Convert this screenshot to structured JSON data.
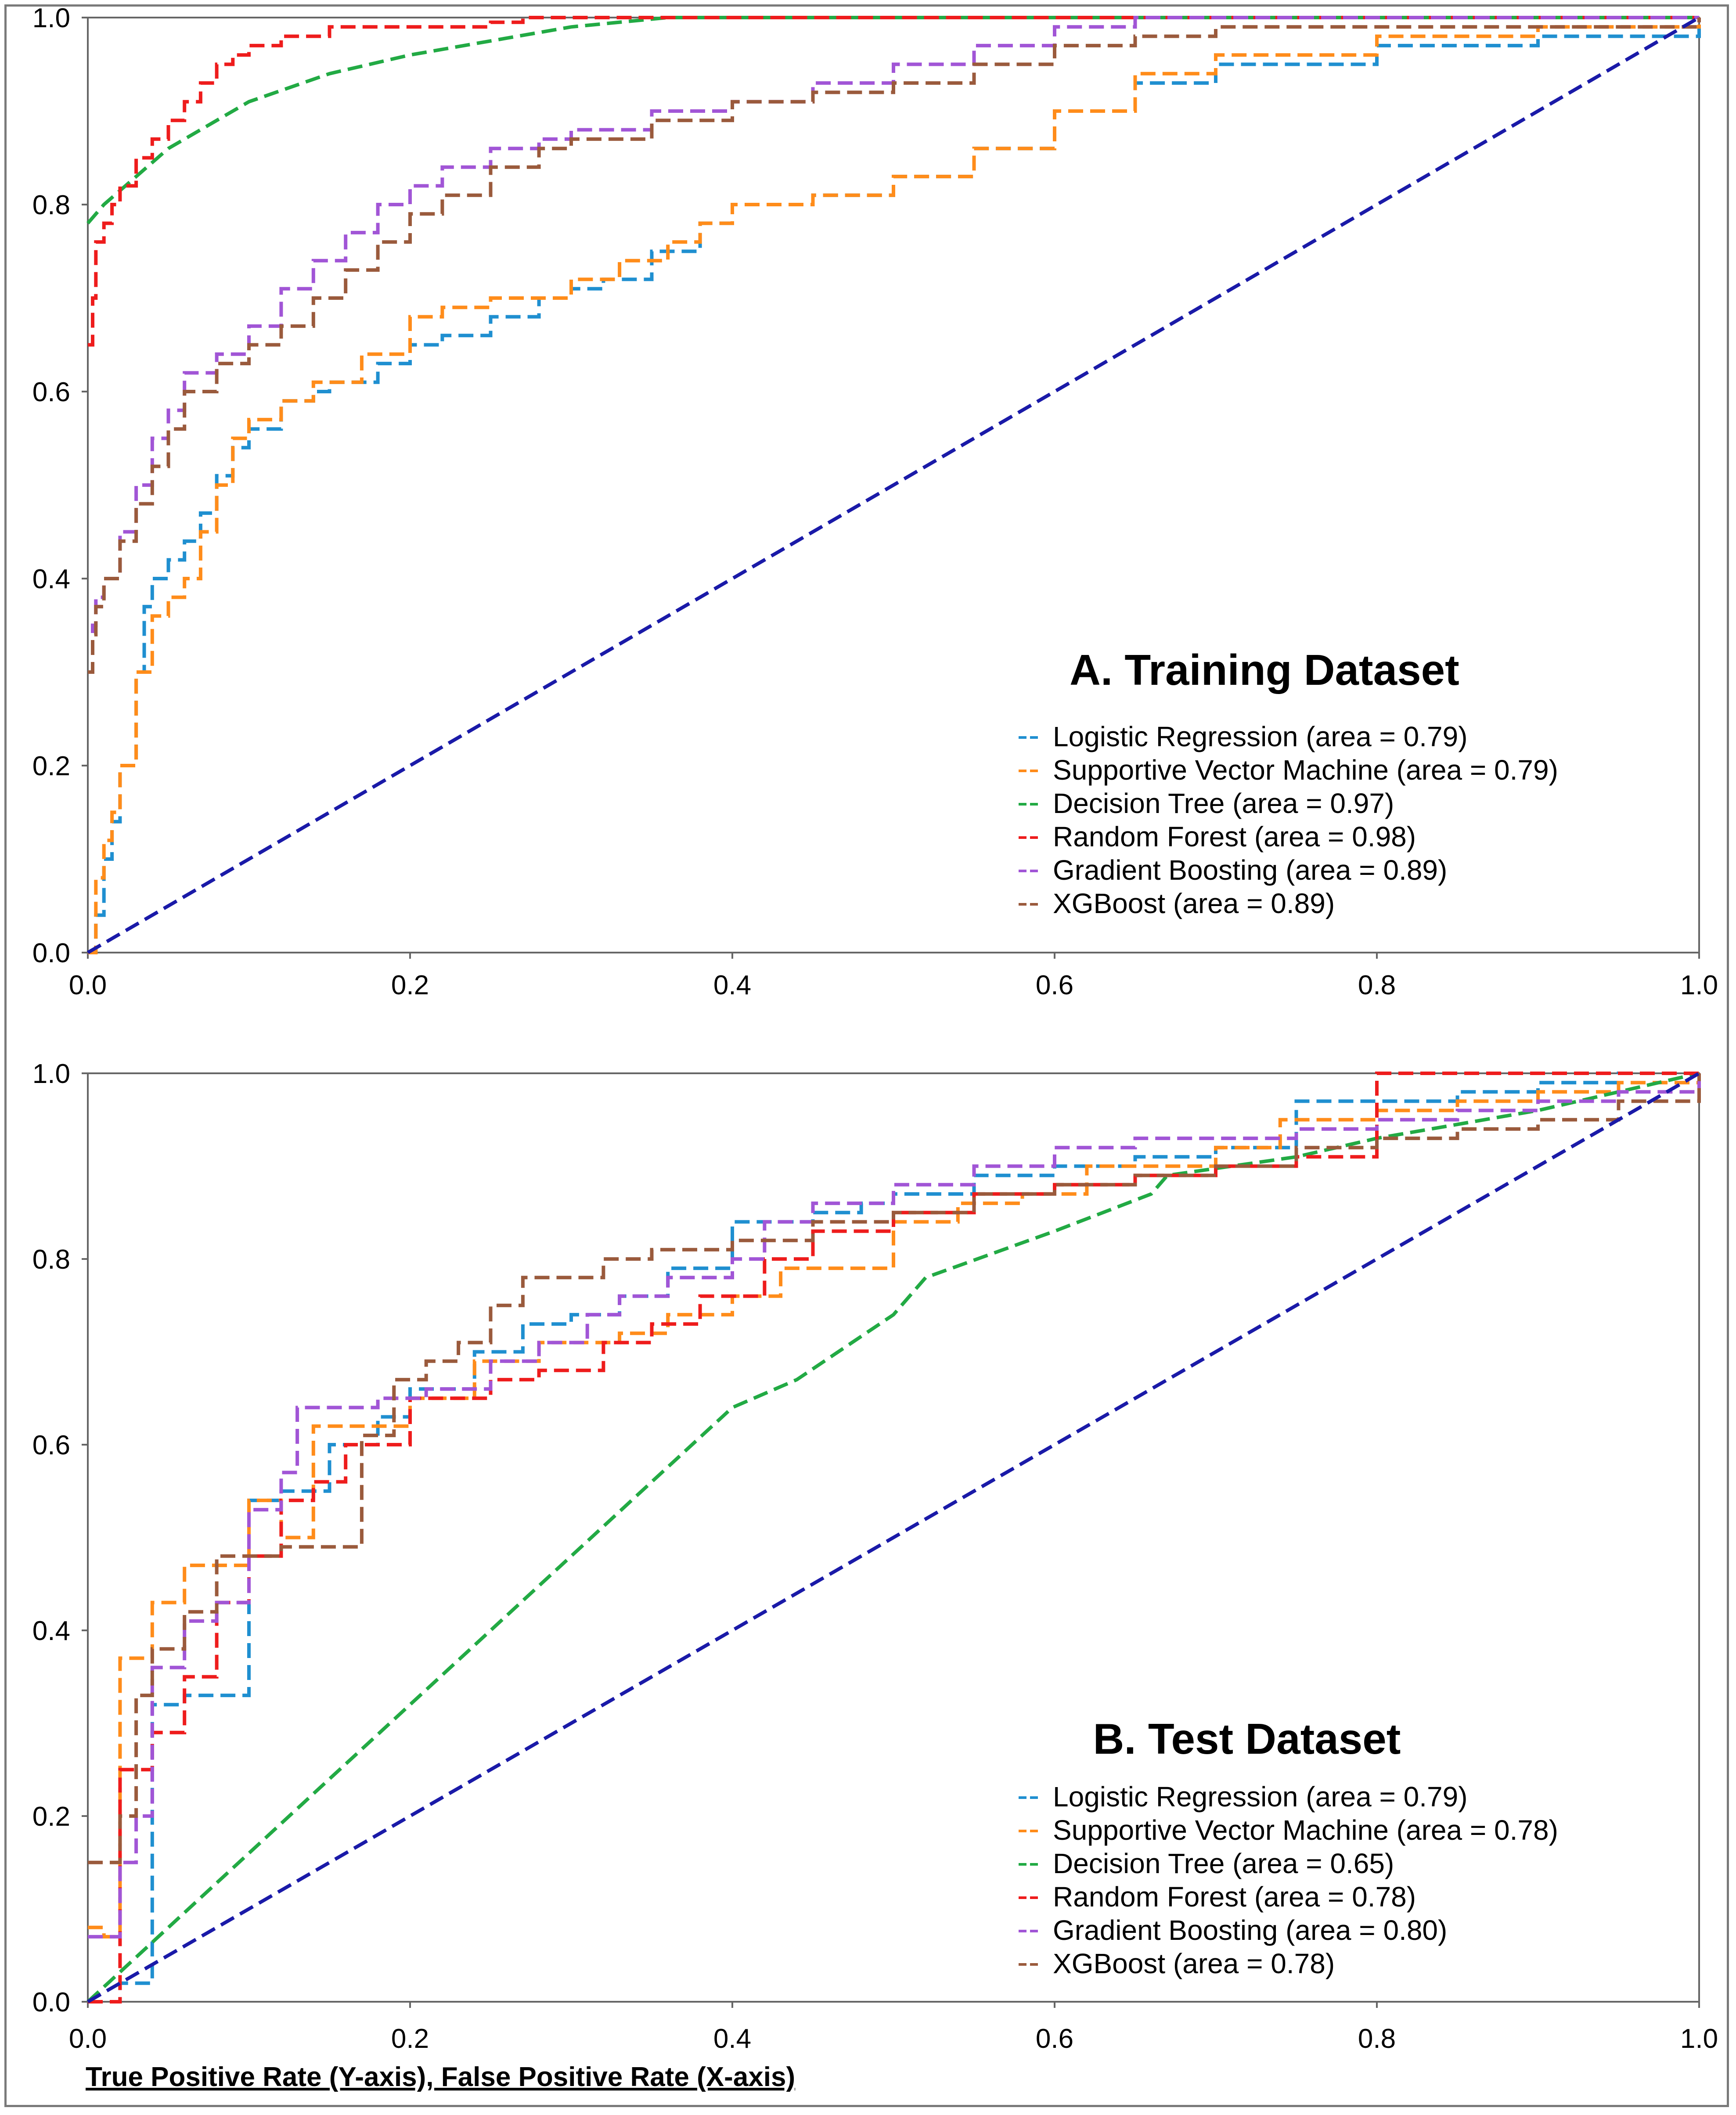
{
  "chart_data": [
    {
      "type": "line",
      "title": "A. Training Dataset",
      "xlim": [
        0,
        1
      ],
      "ylim": [
        0,
        1
      ],
      "x_ticks": [
        "0.0",
        "0.2",
        "0.4",
        "0.6",
        "0.8",
        "1.0"
      ],
      "y_ticks": [
        "0.0",
        "0.2",
        "0.4",
        "0.6",
        "0.8",
        "1.0"
      ],
      "grid": false,
      "legend_position": "bottom-right",
      "series": [
        {
          "name": "Logistic Regression (area = 0.79)",
          "color": "#1f8fd0",
          "step": true,
          "x": [
            0,
            0.005,
            0.01,
            0.015,
            0.02,
            0.03,
            0.035,
            0.04,
            0.05,
            0.06,
            0.07,
            0.08,
            0.09,
            0.1,
            0.12,
            0.14,
            0.15,
            0.18,
            0.2,
            0.22,
            0.25,
            0.28,
            0.3,
            0.32,
            0.35,
            0.38,
            0.4,
            0.45,
            0.5,
            0.55,
            0.6,
            0.65,
            0.7,
            0.8,
            0.9,
            1.0
          ],
          "y": [
            0,
            0.04,
            0.1,
            0.14,
            0.2,
            0.3,
            0.37,
            0.4,
            0.42,
            0.44,
            0.47,
            0.51,
            0.54,
            0.56,
            0.59,
            0.6,
            0.61,
            0.63,
            0.65,
            0.66,
            0.68,
            0.7,
            0.71,
            0.72,
            0.75,
            0.78,
            0.8,
            0.81,
            0.83,
            0.86,
            0.9,
            0.93,
            0.95,
            0.97,
            0.98,
            1.0
          ]
        },
        {
          "name": "Supportive Vector Machine (area = 0.79)",
          "color": "#ff8c1a",
          "step": true,
          "x": [
            0,
            0.005,
            0.01,
            0.015,
            0.02,
            0.03,
            0.04,
            0.05,
            0.06,
            0.07,
            0.08,
            0.09,
            0.1,
            0.12,
            0.14,
            0.17,
            0.2,
            0.22,
            0.25,
            0.3,
            0.33,
            0.36,
            0.38,
            0.4,
            0.45,
            0.5,
            0.55,
            0.6,
            0.65,
            0.7,
            0.8,
            0.9,
            1.0
          ],
          "y": [
            0,
            0.08,
            0.12,
            0.15,
            0.2,
            0.3,
            0.36,
            0.38,
            0.4,
            0.45,
            0.5,
            0.55,
            0.57,
            0.59,
            0.61,
            0.64,
            0.68,
            0.69,
            0.7,
            0.72,
            0.74,
            0.76,
            0.78,
            0.8,
            0.81,
            0.83,
            0.86,
            0.9,
            0.94,
            0.96,
            0.98,
            0.99,
            1.0
          ]
        },
        {
          "name": "Decision Tree (area = 0.97)",
          "color": "#22aa44",
          "step": false,
          "x": [
            0,
            0.01,
            0.05,
            0.1,
            0.15,
            0.2,
            0.3,
            0.36,
            0.4,
            1.0
          ],
          "y": [
            0.78,
            0.8,
            0.86,
            0.91,
            0.94,
            0.96,
            0.99,
            1.0,
            1.0,
            1.0
          ]
        },
        {
          "name": "Random Forest (area = 0.98)",
          "color": "#ee1c1c",
          "step": true,
          "x": [
            0,
            0.003,
            0.005,
            0.01,
            0.015,
            0.02,
            0.03,
            0.04,
            0.05,
            0.06,
            0.07,
            0.08,
            0.09,
            0.1,
            0.12,
            0.15,
            0.2,
            0.25,
            0.27,
            0.3,
            1.0
          ],
          "y": [
            0.65,
            0.7,
            0.76,
            0.78,
            0.8,
            0.82,
            0.85,
            0.87,
            0.89,
            0.91,
            0.93,
            0.95,
            0.96,
            0.97,
            0.98,
            0.99,
            0.99,
            0.995,
            1.0,
            1.0,
            1.0
          ]
        },
        {
          "name": "Gradient Boosting (area = 0.89)",
          "color": "#a155d6",
          "step": true,
          "x": [
            0,
            0.003,
            0.005,
            0.01,
            0.02,
            0.03,
            0.04,
            0.05,
            0.06,
            0.08,
            0.1,
            0.12,
            0.14,
            0.16,
            0.18,
            0.2,
            0.22,
            0.25,
            0.28,
            0.3,
            0.35,
            0.4,
            0.45,
            0.5,
            0.55,
            0.6,
            0.65,
            0.7,
            1.0
          ],
          "y": [
            0.3,
            0.35,
            0.38,
            0.4,
            0.45,
            0.5,
            0.55,
            0.58,
            0.62,
            0.64,
            0.67,
            0.71,
            0.74,
            0.77,
            0.8,
            0.82,
            0.84,
            0.86,
            0.87,
            0.88,
            0.9,
            0.91,
            0.93,
            0.95,
            0.97,
            0.99,
            1.0,
            1.0,
            1.0
          ]
        },
        {
          "name": "XGBoost (area = 0.89)",
          "color": "#9a5a3c",
          "step": true,
          "x": [
            0,
            0.003,
            0.005,
            0.01,
            0.02,
            0.03,
            0.04,
            0.05,
            0.06,
            0.08,
            0.1,
            0.12,
            0.14,
            0.16,
            0.18,
            0.2,
            0.22,
            0.25,
            0.28,
            0.3,
            0.35,
            0.4,
            0.45,
            0.5,
            0.55,
            0.6,
            0.65,
            0.7,
            1.0
          ],
          "y": [
            0.3,
            0.34,
            0.37,
            0.4,
            0.44,
            0.48,
            0.52,
            0.56,
            0.6,
            0.63,
            0.65,
            0.67,
            0.7,
            0.73,
            0.76,
            0.79,
            0.81,
            0.84,
            0.86,
            0.87,
            0.89,
            0.91,
            0.92,
            0.93,
            0.95,
            0.97,
            0.98,
            0.99,
            1.0
          ]
        },
        {
          "name": "",
          "color": "#1a1aa8",
          "step": false,
          "x": [
            0,
            1
          ],
          "y": [
            0,
            1
          ]
        }
      ]
    },
    {
      "type": "line",
      "title": "B. Test Dataset",
      "xlim": [
        0,
        1
      ],
      "ylim": [
        0,
        1
      ],
      "x_ticks": [
        "0.0",
        "0.2",
        "0.4",
        "0.6",
        "0.8",
        "1.0"
      ],
      "y_ticks": [
        "0.0",
        "0.2",
        "0.4",
        "0.6",
        "0.8",
        "1.0"
      ],
      "grid": false,
      "legend_position": "bottom-right",
      "xlabel": "True Positive Rate (Y-axis), False Positive Rate (X-axis)",
      "series": [
        {
          "name": "Logistic Regression (area = 0.79)",
          "color": "#1f8fd0",
          "step": true,
          "x": [
            0,
            0.02,
            0.04,
            0.06,
            0.08,
            0.1,
            0.12,
            0.15,
            0.18,
            0.2,
            0.24,
            0.27,
            0.3,
            0.33,
            0.36,
            0.4,
            0.42,
            0.45,
            0.48,
            0.5,
            0.55,
            0.6,
            0.65,
            0.7,
            0.75,
            0.8,
            0.85,
            0.9,
            0.95,
            1.0
          ],
          "y": [
            0,
            0.02,
            0.32,
            0.33,
            0.33,
            0.54,
            0.55,
            0.6,
            0.63,
            0.66,
            0.7,
            0.73,
            0.74,
            0.76,
            0.79,
            0.84,
            0.84,
            0.85,
            0.86,
            0.87,
            0.89,
            0.9,
            0.91,
            0.92,
            0.97,
            0.97,
            0.98,
            0.99,
            1.0,
            1.0
          ]
        },
        {
          "name": "Supportive Vector Machine (area = 0.78)",
          "color": "#ff8c1a",
          "step": true,
          "x": [
            0,
            0.01,
            0.02,
            0.04,
            0.06,
            0.1,
            0.12,
            0.14,
            0.16,
            0.2,
            0.24,
            0.28,
            0.33,
            0.36,
            0.4,
            0.43,
            0.46,
            0.5,
            0.54,
            0.58,
            0.62,
            0.66,
            0.7,
            0.74,
            0.8,
            0.85,
            0.9,
            0.95,
            1.0
          ],
          "y": [
            0.08,
            0.07,
            0.37,
            0.43,
            0.47,
            0.54,
            0.5,
            0.62,
            0.62,
            0.65,
            0.69,
            0.71,
            0.72,
            0.74,
            0.76,
            0.79,
            0.79,
            0.84,
            0.86,
            0.87,
            0.9,
            0.9,
            0.92,
            0.95,
            0.96,
            0.97,
            0.98,
            0.99,
            1.0
          ]
        },
        {
          "name": "Decision Tree (area = 0.65)",
          "color": "#22aa44",
          "step": false,
          "x": [
            0,
            0.1,
            0.2,
            0.3,
            0.4,
            0.44,
            0.5,
            0.52,
            0.6,
            0.66,
            0.67,
            0.75,
            0.8,
            0.9,
            1.0
          ],
          "y": [
            0,
            0.16,
            0.32,
            0.48,
            0.64,
            0.67,
            0.74,
            0.78,
            0.83,
            0.87,
            0.89,
            0.91,
            0.93,
            0.96,
            1.0
          ]
        },
        {
          "name": "Random Forest (area = 0.78)",
          "color": "#ee1c1c",
          "step": true,
          "x": [
            0,
            0.02,
            0.03,
            0.04,
            0.06,
            0.08,
            0.1,
            0.12,
            0.14,
            0.16,
            0.2,
            0.22,
            0.25,
            0.28,
            0.32,
            0.35,
            0.38,
            0.42,
            0.45,
            0.5,
            0.55,
            0.6,
            0.65,
            0.7,
            0.75,
            0.8,
            0.85,
            0.9,
            1.0
          ],
          "y": [
            0,
            0.25,
            0.25,
            0.29,
            0.35,
            0.43,
            0.48,
            0.54,
            0.56,
            0.6,
            0.65,
            0.65,
            0.67,
            0.68,
            0.71,
            0.73,
            0.76,
            0.8,
            0.83,
            0.85,
            0.87,
            0.88,
            0.89,
            0.9,
            0.91,
            1.0,
            1.0,
            1.0,
            1.0
          ]
        },
        {
          "name": "Gradient Boosting (area = 0.80)",
          "color": "#a155d6",
          "step": true,
          "x": [
            0,
            0.02,
            0.03,
            0.04,
            0.06,
            0.08,
            0.1,
            0.12,
            0.13,
            0.15,
            0.18,
            0.21,
            0.25,
            0.28,
            0.31,
            0.33,
            0.36,
            0.4,
            0.42,
            0.45,
            0.5,
            0.55,
            0.6,
            0.65,
            0.7,
            0.75,
            0.8,
            0.85,
            0.9,
            0.95,
            1.0
          ],
          "y": [
            0.07,
            0.15,
            0.2,
            0.36,
            0.41,
            0.43,
            0.53,
            0.57,
            0.64,
            0.64,
            0.65,
            0.66,
            0.69,
            0.71,
            0.74,
            0.76,
            0.78,
            0.8,
            0.84,
            0.86,
            0.88,
            0.9,
            0.92,
            0.93,
            0.93,
            0.94,
            0.95,
            0.96,
            0.97,
            0.98,
            1.0
          ]
        },
        {
          "name": "XGBoost (area = 0.78)",
          "color": "#9a5a3c",
          "step": true,
          "x": [
            0,
            0.02,
            0.03,
            0.04,
            0.06,
            0.08,
            0.1,
            0.12,
            0.14,
            0.17,
            0.19,
            0.21,
            0.23,
            0.25,
            0.27,
            0.3,
            0.32,
            0.35,
            0.4,
            0.45,
            0.5,
            0.55,
            0.6,
            0.65,
            0.7,
            0.75,
            0.8,
            0.85,
            0.9,
            0.95,
            1.0
          ],
          "y": [
            0.15,
            0.2,
            0.33,
            0.38,
            0.42,
            0.48,
            0.48,
            0.49,
            0.49,
            0.61,
            0.67,
            0.69,
            0.71,
            0.75,
            0.78,
            0.78,
            0.8,
            0.81,
            0.82,
            0.84,
            0.85,
            0.87,
            0.88,
            0.89,
            0.9,
            0.92,
            0.93,
            0.94,
            0.95,
            0.97,
            1.0
          ]
        },
        {
          "name": "",
          "color": "#1a1aa8",
          "step": false,
          "x": [
            0,
            1
          ],
          "y": [
            0,
            1
          ]
        }
      ]
    }
  ]
}
